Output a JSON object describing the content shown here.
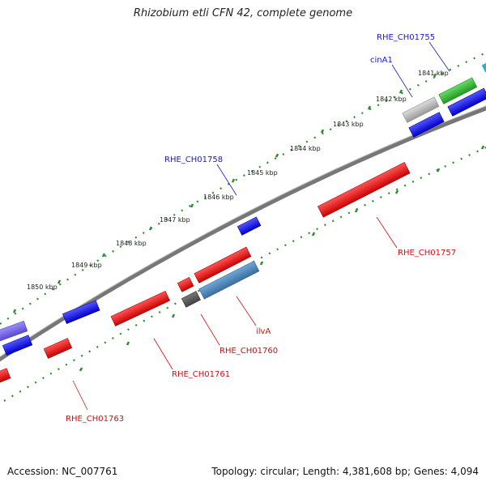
{
  "title": "Rhizobium etli CFN 42, complete genome",
  "accession": "Accession: NC_007761",
  "summary": "Topology: circular; Length: 4,381,608 bp; Genes: 4,094",
  "ruler_labels": [
    "1841 kbp",
    "1842 kbp",
    "1843 kbp",
    "1844 kbp",
    "1845 kbp",
    "1846 kbp",
    "1847 kbp",
    "1848 kbp",
    "1849 kbp",
    "1850 kbp"
  ],
  "gene_labels": [
    {
      "id": "rhe-ch01755",
      "text": "RHE_CH01755",
      "color": "#1a1acc"
    },
    {
      "id": "cina1",
      "text": "cinA1",
      "color": "#1a1acc"
    },
    {
      "id": "rhe-ch01758",
      "text": "RHE_CH01758",
      "color": "#1a1acc"
    },
    {
      "id": "rhe-ch01757",
      "text": "RHE_CH01757",
      "color": "#cc1111"
    },
    {
      "id": "ilva",
      "text": "ilvA",
      "color": "#cc1111"
    },
    {
      "id": "rhe-ch01760",
      "text": "RHE_CH01760",
      "color": "#cc1111"
    },
    {
      "id": "rhe-ch01761",
      "text": "RHE_CH01761",
      "color": "#cc1111"
    },
    {
      "id": "rhe-ch01763",
      "text": "RHE_CH01763",
      "color": "#cc1111"
    }
  ],
  "colors": {
    "forward": "#1111dd",
    "reverse": "#ee1111",
    "rna": "#33bb33",
    "pseudo": "#aaaaaa",
    "steel": "#4682b4",
    "purple": "#7b68ee",
    "dark": "#555555",
    "cyan": "#11bbdd",
    "ruler": "#2e8b2e",
    "backbone": "#777777"
  }
}
